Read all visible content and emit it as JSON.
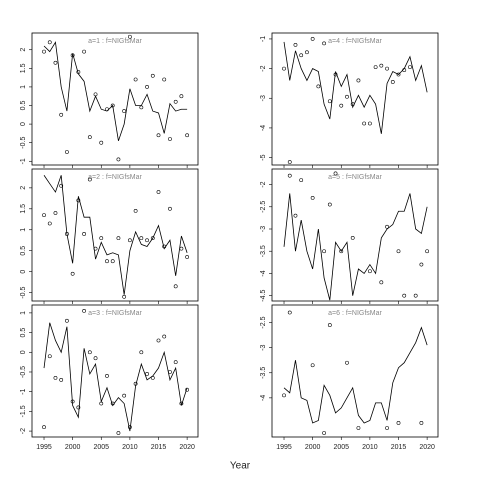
{
  "xlabel": "Year",
  "chart_data": [
    {
      "type": "line",
      "title": "a=1 : f=NIGfsMar",
      "x": [
        1995,
        1996,
        1997,
        1998,
        1999,
        2000,
        2001,
        2002,
        2003,
        2004,
        2005,
        2006,
        2007,
        2008,
        2009,
        2010,
        2011,
        2012,
        2013,
        2014,
        2015,
        2016,
        2017,
        2018,
        2019,
        2020
      ],
      "xlim": [
        1992.9,
        2021.9
      ],
      "xticks": [
        1995,
        2000,
        2005,
        2010,
        2015,
        2020
      ],
      "ylim": [
        -1.1,
        2.45
      ],
      "yticks": [
        -1.0,
        -0.5,
        0.0,
        0.5,
        1.0,
        1.5,
        2.0
      ],
      "series": [
        {
          "style": "points",
          "color": "#000000",
          "values": [
            1.95,
            2.2,
            1.65,
            0.25,
            -0.75,
            1.85,
            1.4,
            1.95,
            -0.35,
            0.8,
            -0.5,
            0.4,
            0.5,
            -0.95,
            0.35,
            2.35,
            1.2,
            0.45,
            1.0,
            1.3,
            -0.3,
            1.2,
            -0.4,
            0.6,
            0.75,
            -0.3
          ]
        },
        {
          "style": "line",
          "color": "#000000",
          "values": [
            2.1,
            1.95,
            2.2,
            1.0,
            0.35,
            1.9,
            1.35,
            1.15,
            0.35,
            0.75,
            0.4,
            0.35,
            0.5,
            -0.45,
            0.0,
            0.95,
            0.5,
            0.5,
            0.8,
            0.35,
            0.3,
            -0.25,
            0.55,
            0.35,
            0.4,
            0.4
          ]
        }
      ]
    },
    {
      "type": "line",
      "title": "a=4 : f=NIGfsMar",
      "x": [
        1995,
        1996,
        1997,
        1998,
        1999,
        2000,
        2001,
        2002,
        2003,
        2004,
        2005,
        2006,
        2007,
        2008,
        2009,
        2010,
        2011,
        2012,
        2013,
        2014,
        2015,
        2016,
        2017,
        2018,
        2019,
        2020
      ],
      "xlim": [
        1992.9,
        2021.9
      ],
      "xticks": [
        1995,
        2000,
        2005,
        2010,
        2015,
        2020
      ],
      "ylim": [
        -5.25,
        -0.8
      ],
      "yticks": [
        -5,
        -4,
        -3,
        -2,
        -1
      ],
      "series": [
        {
          "style": "points",
          "color": "#000000",
          "values": [
            -2.0,
            -5.15,
            -1.2,
            -1.55,
            -1.45,
            -1.0,
            -2.6,
            -1.15,
            -3.1,
            -2.2,
            -3.25,
            -2.95,
            -3.2,
            -2.4,
            -3.85,
            -3.85,
            -1.95,
            -1.9,
            -2.0,
            -2.45,
            -2.2,
            -2.05,
            -1.95,
            null,
            null,
            null
          ]
        },
        {
          "style": "line",
          "color": "#000000",
          "values": [
            -1.1,
            -2.4,
            -1.4,
            -2.0,
            -2.4,
            -2.0,
            -2.1,
            -3.2,
            -3.7,
            -2.1,
            -2.6,
            -2.2,
            -3.3,
            -2.9,
            -3.3,
            -2.9,
            -3.2,
            -4.2,
            -2.5,
            -2.1,
            -2.2,
            -2.0,
            -1.6,
            -2.4,
            -1.9,
            -2.8
          ]
        }
      ]
    },
    {
      "type": "line",
      "title": "a=2 : f=NIGfsMar",
      "x": [
        1995,
        1996,
        1997,
        1998,
        1999,
        2000,
        2001,
        2002,
        2003,
        2004,
        2005,
        2006,
        2007,
        2008,
        2009,
        2010,
        2011,
        2012,
        2013,
        2014,
        2015,
        2016,
        2017,
        2018,
        2019,
        2020
      ],
      "xlim": [
        1992.9,
        2021.9
      ],
      "xticks": [
        1995,
        2000,
        2005,
        2010,
        2015,
        2020
      ],
      "ylim": [
        -0.7,
        2.45
      ],
      "yticks": [
        -0.5,
        0.0,
        0.5,
        1.0,
        1.5,
        2.0
      ],
      "series": [
        {
          "style": "points",
          "color": "#000000",
          "values": [
            1.35,
            1.15,
            1.4,
            2.05,
            0.9,
            -0.05,
            1.7,
            0.9,
            2.2,
            0.55,
            0.8,
            0.25,
            0.25,
            0.8,
            -0.6,
            0.75,
            1.45,
            0.8,
            0.75,
            0.8,
            1.9,
            0.6,
            1.5,
            -0.35,
            0.55,
            0.35
          ]
        },
        {
          "style": "line",
          "color": "#000000",
          "values": [
            2.3,
            2.1,
            1.9,
            2.3,
            0.9,
            0.2,
            1.8,
            1.3,
            1.3,
            0.3,
            0.7,
            0.4,
            0.45,
            0.4,
            -0.55,
            0.5,
            0.95,
            0.65,
            0.6,
            0.8,
            1.1,
            0.55,
            0.75,
            -0.1,
            0.85,
            0.45
          ]
        }
      ]
    },
    {
      "type": "line",
      "title": "a=5 : f=NIGfsMar",
      "x": [
        1995,
        1996,
        1997,
        1998,
        1999,
        2000,
        2001,
        2002,
        2003,
        2004,
        2005,
        2006,
        2007,
        2008,
        2009,
        2010,
        2011,
        2012,
        2013,
        2014,
        2015,
        2016,
        2017,
        2018,
        2019,
        2020
      ],
      "xlim": [
        1992.9,
        2021.9
      ],
      "xticks": [
        1995,
        2000,
        2005,
        2010,
        2015,
        2020
      ],
      "ylim": [
        -4.62,
        -1.65
      ],
      "yticks": [
        -4.5,
        -4.0,
        -3.5,
        -3.0,
        -2.5,
        -2.0
      ],
      "series": [
        {
          "style": "points",
          "color": "#000000",
          "values": [
            null,
            -1.8,
            -2.7,
            -1.9,
            null,
            -2.3,
            null,
            -3.5,
            -2.45,
            -1.75,
            -3.5,
            null,
            -3.2,
            null,
            null,
            -3.95,
            null,
            -4.2,
            -2.95,
            null,
            -3.5,
            -4.5,
            null,
            -4.5,
            -3.8,
            -3.5
          ]
        },
        {
          "style": "line",
          "color": "#000000",
          "values": [
            -3.4,
            -2.2,
            -3.5,
            -2.8,
            -3.5,
            -3.9,
            -3.0,
            -4.1,
            -4.6,
            -3.3,
            -3.5,
            -3.3,
            -4.5,
            -3.9,
            -4.0,
            -3.8,
            -4.0,
            -3.2,
            -3.0,
            -2.9,
            -2.6,
            -2.6,
            -2.2,
            -3.0,
            -3.1,
            -2.5
          ]
        }
      ]
    },
    {
      "type": "line",
      "title": "a=3 : f=NIGfsMar",
      "x": [
        1995,
        1996,
        1997,
        1998,
        1999,
        2000,
        2001,
        2002,
        2003,
        2004,
        2005,
        2006,
        2007,
        2008,
        2009,
        2010,
        2011,
        2012,
        2013,
        2014,
        2015,
        2016,
        2017,
        2018,
        2019,
        2020
      ],
      "xlim": [
        1992.9,
        2021.9
      ],
      "xticks": [
        1995,
        2000,
        2005,
        2010,
        2015,
        2020
      ],
      "ylim": [
        -2.15,
        1.2
      ],
      "yticks": [
        -2.0,
        -1.5,
        -1.0,
        -0.5,
        0.0,
        0.5,
        1.0
      ],
      "series": [
        {
          "style": "points",
          "color": "#000000",
          "values": [
            -1.9,
            -0.1,
            -0.65,
            -0.7,
            0.8,
            -1.25,
            -1.4,
            1.05,
            0.0,
            -0.15,
            -1.3,
            -0.6,
            -1.3,
            -2.05,
            -1.1,
            -1.9,
            -0.8,
            0.0,
            -0.55,
            -0.65,
            0.3,
            0.4,
            -0.5,
            -0.25,
            -1.3,
            -0.95
          ]
        },
        {
          "style": "line",
          "color": "#000000",
          "values": [
            -0.4,
            0.75,
            0.3,
            0.0,
            0.65,
            -1.35,
            -1.65,
            0.1,
            -0.55,
            -0.3,
            -1.25,
            -0.9,
            -1.35,
            -1.15,
            -1.3,
            -2.0,
            -0.85,
            -0.3,
            -0.7,
            -0.6,
            -0.4,
            0.0,
            -0.7,
            -0.4,
            -1.35,
            -0.9
          ]
        }
      ]
    },
    {
      "type": "line",
      "title": "a=6 : f=NIGfsMar",
      "x": [
        1995,
        1996,
        1997,
        1998,
        1999,
        2000,
        2001,
        2002,
        2003,
        2004,
        2005,
        2006,
        2007,
        2008,
        2009,
        2010,
        2011,
        2012,
        2013,
        2014,
        2015,
        2016,
        2017,
        2018,
        2019,
        2020
      ],
      "xlim": [
        1992.9,
        2021.9
      ],
      "xticks": [
        1995,
        2000,
        2005,
        2010,
        2015,
        2020
      ],
      "ylim": [
        -4.78,
        -2.15
      ],
      "yticks": [
        -4.0,
        -3.5,
        -3.0,
        -2.5
      ],
      "series": [
        {
          "style": "points",
          "color": "#000000",
          "values": [
            -3.95,
            -2.3,
            null,
            null,
            null,
            -3.35,
            null,
            -4.7,
            -2.55,
            null,
            null,
            -3.3,
            null,
            -4.6,
            null,
            null,
            null,
            null,
            -4.6,
            null,
            -4.5,
            null,
            null,
            null,
            -4.5,
            null
          ]
        },
        {
          "style": "line",
          "color": "#000000",
          "values": [
            -3.8,
            -3.9,
            -3.25,
            -4.0,
            -4.05,
            -4.5,
            -4.45,
            -3.75,
            -3.95,
            -4.3,
            -4.2,
            -4.0,
            -3.8,
            -4.35,
            -4.5,
            -4.45,
            -4.1,
            -4.1,
            -4.45,
            -3.7,
            -3.4,
            -3.3,
            -3.1,
            -2.9,
            -2.6,
            -2.95
          ]
        }
      ]
    }
  ]
}
